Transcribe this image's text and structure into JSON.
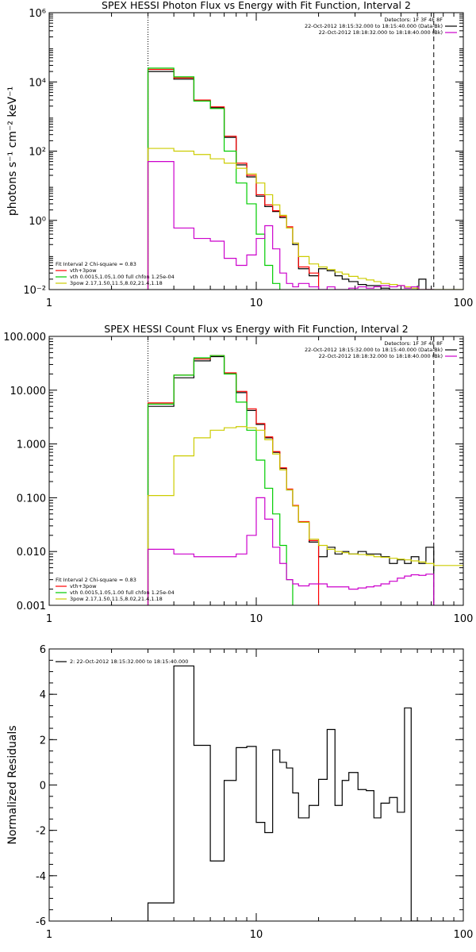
{
  "chart_data": [
    {
      "type": "line",
      "title": "SPEX HESSI Photon Flux vs Energy with Fit Function, Interval 2",
      "ylabel": "photons s⁻¹ cm⁻² keV⁻¹",
      "xscale": "log",
      "yscale": "log",
      "xlim": [
        1,
        100
      ],
      "ylim": [
        0.01,
        1000000
      ],
      "xticks": [
        1,
        10,
        100
      ],
      "xtick_labels": [
        "1",
        "10",
        "100"
      ],
      "yticks": [
        0.01,
        1,
        100,
        10000,
        1000000
      ],
      "ytick_labels": [
        "10⁻²",
        "10⁰",
        "10²",
        "10⁴",
        "10⁶"
      ],
      "vlines": [
        {
          "x": 3,
          "style": "dotted"
        },
        {
          "x": 72,
          "style": "dashed"
        }
      ],
      "legend_right": {
        "header": "Detectors: 1F 3F 4F 8F",
        "entries": [
          {
            "text": "22-Oct-2012 18:15:32.000 to 18:15:40.000 (Data-Bk)",
            "color": "#000000"
          },
          {
            "text": "22-Oct-2012 18:18:32.000 to 18:18:40.000 (Bk)",
            "color": "#cc00cc"
          }
        ]
      },
      "legend_left": {
        "header": "Fit Interval 2   Chi-square = 0.83",
        "entries": [
          {
            "text": "vth+3pow",
            "color": "#ff0000"
          },
          {
            "text": "vth 0.0015,1.05,1.00  full chfon 1.25e-04",
            "color": "#00cc00"
          },
          {
            "text": "3pow 2.17,1.50,11.5,8.02,21.4,1.18",
            "color": "#cccc00"
          }
        ]
      },
      "bin_edges": [
        3,
        4,
        5,
        6,
        7,
        8,
        9,
        10,
        11,
        12,
        13,
        14,
        15,
        16,
        18,
        20,
        22,
        24,
        26,
        28,
        31,
        34,
        37,
        40,
        44,
        48,
        52,
        56,
        61,
        66,
        72,
        100
      ],
      "series": [
        {
          "color": "#000000",
          "values": [
            20000,
            12000,
            2800,
            1800,
            250,
            40,
            18,
            5,
            2.5,
            1.8,
            1.2,
            0.6,
            0.2,
            0.04,
            0.025,
            0.04,
            0.035,
            0.025,
            0.02,
            0.017,
            0.014,
            0.013,
            0.013,
            0.011,
            0.01,
            0.008,
            0.009,
            0.008,
            0.02,
            0.006,
            null
          ]
        },
        {
          "color": "#ff0000",
          "values": [
            23000,
            13000,
            3000,
            1900,
            270,
            45,
            20,
            5.5,
            2.8,
            1.9,
            1.3,
            0.65,
            0.22,
            0.045,
            0.03,
            null,
            null,
            null,
            null,
            null,
            null,
            null,
            null,
            null,
            null,
            null,
            null,
            null,
            null,
            null,
            null
          ]
        },
        {
          "color": "#00cc00",
          "values": [
            25000,
            14000,
            2800,
            1700,
            100,
            12,
            3,
            0.4,
            0.05,
            0.015,
            null,
            null,
            null,
            null,
            null,
            null,
            null,
            null,
            null,
            null,
            null,
            null,
            null,
            null,
            null,
            null,
            null,
            null,
            null,
            null,
            null
          ]
        },
        {
          "color": "#cccc00",
          "values": [
            120,
            100,
            80,
            60,
            45,
            32,
            22,
            12,
            5.5,
            2.8,
            1.4,
            0.6,
            0.22,
            0.09,
            0.055,
            0.045,
            0.038,
            0.032,
            0.028,
            0.024,
            0.021,
            0.019,
            0.017,
            0.015,
            0.014,
            0.013,
            0.012,
            0.011,
            0.01,
            0.009,
            0.008
          ]
        },
        {
          "color": "#cc00cc",
          "values": [
            50,
            0.6,
            0.3,
            0.25,
            0.08,
            0.05,
            0.1,
            0.3,
            0.7,
            0.15,
            0.03,
            0.015,
            0.012,
            0.015,
            0.012,
            0.01,
            0.012,
            0.01,
            0.01,
            0.011,
            0.012,
            0.011,
            0.012,
            0.013,
            0.012,
            0.013,
            0.011,
            0.012,
            0.01,
            0.009,
            null
          ]
        }
      ]
    },
    {
      "type": "line",
      "title": "SPEX HESSI Count Flux vs Energy with Fit Function, Interval 2",
      "ylabel": "",
      "xscale": "log",
      "yscale": "log",
      "xlim": [
        1,
        100
      ],
      "ylim": [
        0.001,
        100
      ],
      "xticks": [
        1,
        10,
        100
      ],
      "xtick_labels": [
        "1",
        "10",
        "100"
      ],
      "yticks": [
        0.001,
        0.01,
        0.1,
        1,
        10,
        100
      ],
      "ytick_labels": [
        "0.001",
        "0.010",
        "0.100",
        "1.000",
        "10.000",
        "100.000"
      ],
      "vlines": [
        {
          "x": 3,
          "style": "dotted"
        },
        {
          "x": 72,
          "style": "dashed"
        }
      ],
      "legend_right": {
        "header": "Detectors: 1F 3F 4F 8F",
        "entries": [
          {
            "text": "22-Oct-2012 18:15:32.000 to 18:15:40.000 (Data-Bk)",
            "color": "#000000"
          },
          {
            "text": "22-Oct-2012 18:18:32.000 to 18:18:40.000 (Bk)",
            "color": "#cc00cc"
          }
        ]
      },
      "legend_left": {
        "header": "Fit Interval 2   Chi-square = 0.83",
        "entries": [
          {
            "text": "vth+3pow",
            "color": "#ff0000"
          },
          {
            "text": "vth 0.0015,1.05,1.00  full chfon 1.25e-04",
            "color": "#00cc00"
          },
          {
            "text": "3pow 2.17,1.50,11.5,8.02,21.4,1.18",
            "color": "#cccc00"
          }
        ]
      },
      "bin_edges": [
        3,
        4,
        5,
        6,
        7,
        8,
        9,
        10,
        11,
        12,
        13,
        14,
        15,
        16,
        18,
        20,
        22,
        24,
        26,
        28,
        31,
        34,
        37,
        40,
        44,
        48,
        52,
        56,
        61,
        66,
        72,
        100
      ],
      "series": [
        {
          "color": "#000000",
          "values": [
            5,
            17,
            35,
            42,
            20,
            9,
            4.2,
            2.3,
            1.3,
            0.7,
            0.35,
            0.14,
            0.07,
            0.035,
            0.015,
            0.008,
            0.012,
            0.009,
            0.01,
            0.009,
            0.01,
            0.009,
            0.009,
            0.008,
            0.006,
            0.007,
            0.006,
            0.008,
            0.006,
            0.012,
            null
          ]
        },
        {
          "color": "#ff0000",
          "values": [
            5.8,
            19,
            38,
            44,
            21,
            9.5,
            4.5,
            2.4,
            1.35,
            0.72,
            0.36,
            0.145,
            0.072,
            0.036,
            0.016,
            null,
            null,
            null,
            null,
            null,
            null,
            null,
            null,
            null,
            null,
            null,
            null,
            null,
            null,
            null,
            null
          ]
        },
        {
          "color": "#00cc00",
          "values": [
            5.5,
            19,
            40,
            44,
            20,
            6,
            1.8,
            0.5,
            0.15,
            0.05,
            0.013,
            0.003,
            null,
            null,
            null,
            null,
            null,
            null,
            null,
            null,
            null,
            null,
            null,
            null,
            null,
            null,
            null,
            null,
            null,
            null,
            null
          ]
        },
        {
          "color": "#cccc00",
          "values": [
            0.11,
            0.6,
            1.3,
            1.8,
            2.0,
            2.1,
            2.0,
            1.8,
            1.2,
            0.65,
            0.33,
            0.14,
            0.07,
            0.035,
            0.017,
            0.013,
            0.011,
            0.01,
            0.0095,
            0.009,
            0.0088,
            0.0085,
            0.008,
            0.0078,
            0.0075,
            0.0072,
            0.007,
            0.0067,
            0.0064,
            0.006,
            0.0055
          ]
        },
        {
          "color": "#cc00cc",
          "values": [
            0.011,
            0.009,
            0.008,
            0.008,
            0.008,
            0.009,
            0.02,
            0.1,
            0.04,
            0.012,
            0.006,
            0.003,
            0.0025,
            0.0023,
            0.0025,
            0.0025,
            0.0022,
            0.0022,
            0.0022,
            0.002,
            0.0021,
            0.0022,
            0.0023,
            0.0025,
            0.0028,
            0.0032,
            0.0035,
            0.0037,
            0.0036,
            0.0038,
            null
          ]
        }
      ]
    },
    {
      "type": "line",
      "title": "",
      "ylabel": "Normalized Residuals",
      "xscale": "log",
      "yscale": "linear",
      "xlim": [
        1,
        100
      ],
      "ylim": [
        -6,
        6
      ],
      "xticks": [
        1,
        10,
        100
      ],
      "xtick_labels": [
        "1",
        "10",
        "100"
      ],
      "yticks": [
        -6,
        -4,
        -2,
        0,
        2,
        4,
        6
      ],
      "ytick_labels": [
        "-6",
        "-4",
        "-2",
        "0",
        "2",
        "4",
        "6"
      ],
      "legend_left": {
        "header": "",
        "entries": [
          {
            "text": "2: 22-Oct-2012 18:15:32.000 to 18:15:40.000",
            "color": "#000000"
          }
        ]
      },
      "bin_edges": [
        3,
        4,
        5,
        6,
        7,
        8,
        9,
        10,
        11,
        12,
        13,
        14,
        15,
        16,
        18,
        20,
        22,
        24,
        26,
        28,
        31,
        34,
        37,
        40,
        44,
        48,
        52,
        56,
        61,
        66,
        72
      ],
      "series": [
        {
          "color": "#000000",
          "values": [
            -5.2,
            5.25,
            1.75,
            -3.35,
            0.2,
            1.65,
            1.7,
            -1.65,
            -2.1,
            1.55,
            1.0,
            0.75,
            -0.35,
            -1.45,
            -0.9,
            0.25,
            2.45,
            -0.9,
            0.2,
            0.55,
            -0.2,
            -0.25,
            -1.45,
            -0.8,
            -0.55,
            -1.2,
            3.4,
            -6.0,
            null,
            null
          ]
        }
      ]
    }
  ]
}
